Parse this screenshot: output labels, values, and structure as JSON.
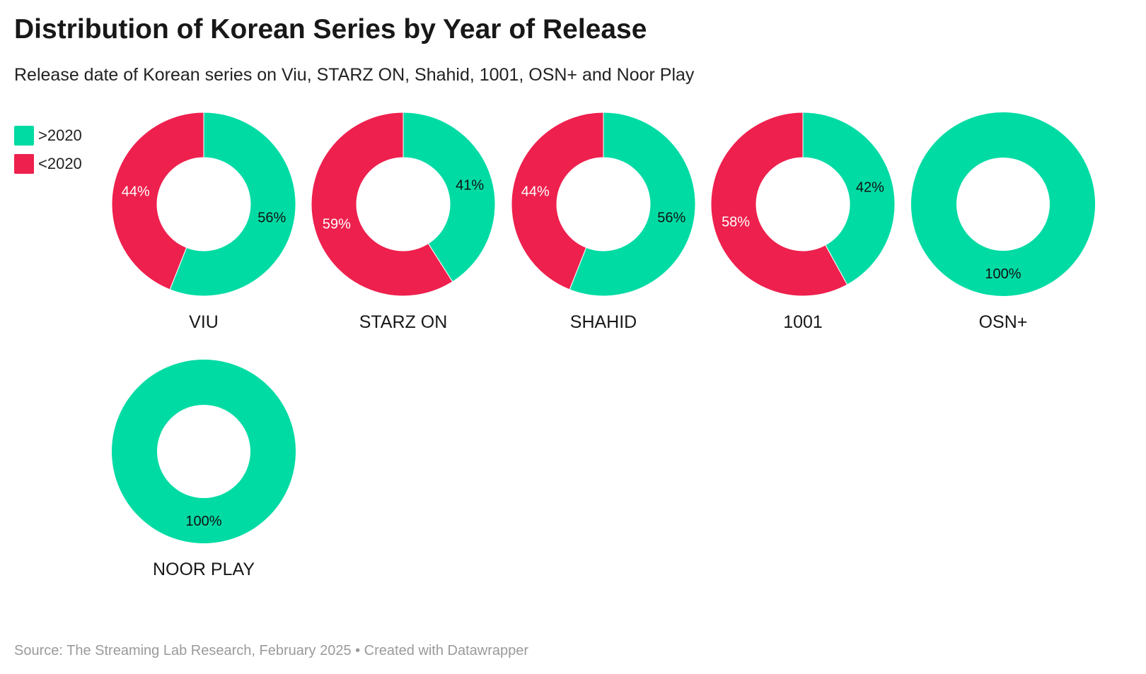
{
  "title": "Distribution of Korean Series by Year of Release",
  "subtitle": "Release date of Korean series on Viu, STARZ ON, Shahid, 1001, OSN+ and Noor Play",
  "footer": "Source: The Streaming Lab Research, February 2025 • Created with Datawrapper",
  "colors": {
    "after": "#00dba4",
    "before": "#ee204d"
  },
  "chart_data": {
    "type": "pie",
    "variant": "donut",
    "legend": {
      "placement": "top-left",
      "entries": [
        ">2020",
        "<2020"
      ]
    },
    "categories": [
      ">2020",
      "<2020"
    ],
    "charts": [
      {
        "name": "VIU",
        "values": [
          56,
          44
        ],
        "labels": [
          "56%",
          "44%"
        ]
      },
      {
        "name": "STARZ ON",
        "values": [
          41,
          59
        ],
        "labels": [
          "41%",
          "59%"
        ]
      },
      {
        "name": "SHAHID",
        "values": [
          56,
          44
        ],
        "labels": [
          "56%",
          "44%"
        ]
      },
      {
        "name": "1001",
        "values": [
          42,
          58
        ],
        "labels": [
          "42%",
          "58%"
        ]
      },
      {
        "name": "OSN+",
        "values": [
          100,
          0
        ],
        "labels": [
          "100%",
          ""
        ]
      },
      {
        "name": "NOOR PLAY",
        "values": [
          100,
          0
        ],
        "labels": [
          "100%",
          ""
        ]
      }
    ]
  }
}
